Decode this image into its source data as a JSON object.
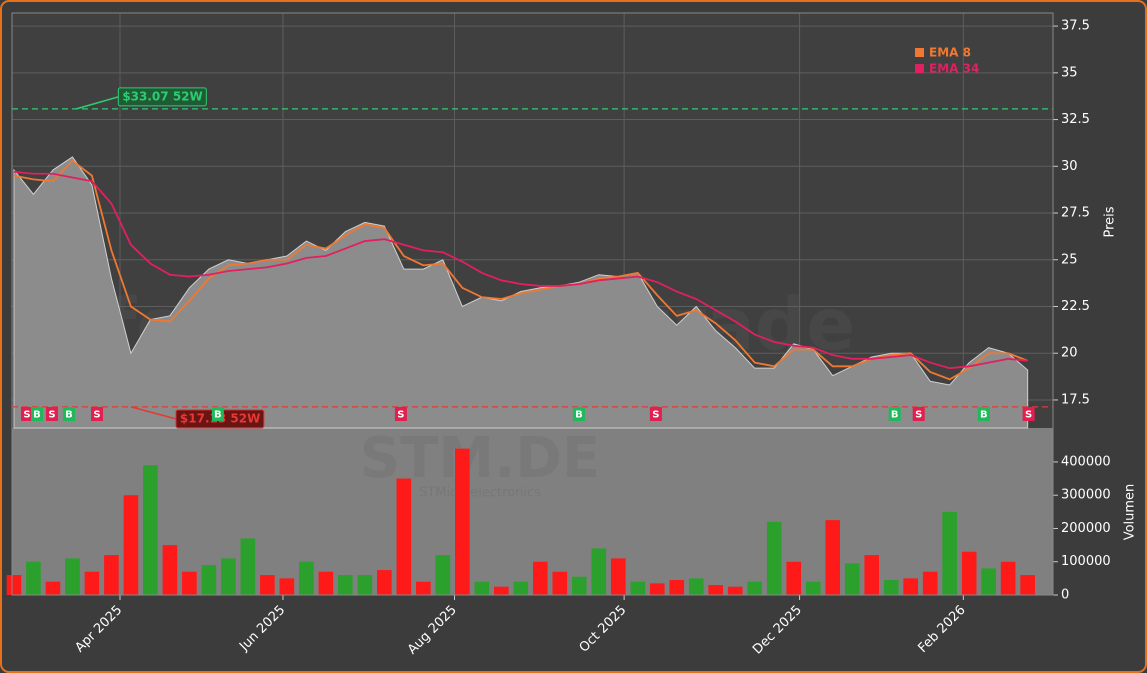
{
  "watermark": "forexsignale.trade",
  "chart_data": [
    {
      "type": "line",
      "y_label": "Preis",
      "watermark_symbol": "STM.DE",
      "watermark_name": "STMicroelectronics",
      "xlim": [
        -0.1,
        53.3
      ],
      "ylim": [
        16,
        38.2
      ],
      "yticks": [
        17.5,
        20.0,
        22.5,
        25.0,
        27.5,
        30.0,
        32.5,
        35.0,
        37.5
      ],
      "grid": true,
      "legend": "upper right",
      "values": [
        29.8,
        28.5,
        29.8,
        30.5,
        29,
        24,
        20,
        21.8,
        22,
        23.5,
        24.5,
        25,
        24.8,
        25,
        25.2,
        26,
        25.5,
        26.5,
        27,
        26.8,
        24.5,
        24.5,
        25,
        22.5,
        23,
        22.8,
        23.3,
        23.5,
        23.6,
        23.8,
        24.2,
        24.1,
        24.3,
        22.5,
        21.5,
        22.5,
        21.2,
        20.3,
        19.2,
        19.2,
        20.5,
        20.2,
        18.8,
        19.3,
        19.8,
        20,
        20,
        18.5,
        18.3,
        19.5,
        20.3,
        20,
        19.1
      ],
      "color": "#8c8c8c",
      "series": [
        {
          "name": "EMA 8",
          "color": "#f07830",
          "values": [
            29.5,
            29.3,
            29.2,
            30.3,
            29.5,
            25.5,
            22.5,
            21.8,
            21.7,
            22.8,
            24,
            24.7,
            24.8,
            25,
            25,
            25.8,
            25.6,
            26.3,
            26.9,
            26.7,
            25.2,
            24.7,
            24.8,
            23.5,
            23,
            22.9,
            23.2,
            23.4,
            23.6,
            23.7,
            24,
            24.1,
            24.3,
            23.1,
            22,
            22.3,
            21.6,
            20.7,
            19.5,
            19.3,
            20.2,
            20.2,
            19.3,
            19.3,
            19.7,
            19.9,
            20,
            19,
            18.6,
            19.2,
            20,
            20,
            19.6
          ]
        },
        {
          "name": "EMA 34",
          "color": "#e0205f",
          "values": [
            29.7,
            29.6,
            29.6,
            29.4,
            29.2,
            28,
            25.8,
            24.8,
            24.2,
            24.1,
            24.2,
            24.4,
            24.5,
            24.6,
            24.8,
            25.1,
            25.2,
            25.6,
            26,
            26.1,
            25.8,
            25.5,
            25.4,
            24.9,
            24.3,
            23.9,
            23.7,
            23.6,
            23.6,
            23.7,
            23.9,
            24,
            24.1,
            23.8,
            23.3,
            22.9,
            22.3,
            21.7,
            21,
            20.6,
            20.4,
            20.3,
            19.9,
            19.7,
            19.7,
            19.8,
            19.9,
            19.5,
            19.2,
            19.3,
            19.5,
            19.7,
            19.6
          ]
        }
      ],
      "hlines": [
        {
          "value": 33.07,
          "x": 3.2,
          "label": "$33.07 52W",
          "color": "#2ecc71"
        },
        {
          "value": 17.13,
          "x": 6.0,
          "label": "$17.13 52W",
          "color": "#e53935"
        }
      ],
      "signals": [
        {
          "x": 0.67,
          "label": "S",
          "color": "#e0204f"
        },
        {
          "x": 1.18,
          "label": "B",
          "color": "#1fb85a"
        },
        {
          "x": 1.95,
          "label": "S",
          "color": "#e0204f"
        },
        {
          "x": 2.82,
          "label": "B",
          "color": "#1fb85a"
        },
        {
          "x": 4.26,
          "label": "S",
          "color": "#e0204f"
        },
        {
          "x": 10.46,
          "label": "B",
          "color": "#1fb85a"
        },
        {
          "x": 19.85,
          "label": "S",
          "color": "#e0204f"
        },
        {
          "x": 28.98,
          "label": "B",
          "color": "#1fb85a"
        },
        {
          "x": 32.93,
          "label": "S",
          "color": "#e0204f"
        },
        {
          "x": 45.18,
          "label": "B",
          "color": "#1fb85a"
        },
        {
          "x": 46.41,
          "label": "S",
          "color": "#e0204f"
        },
        {
          "x": 49.75,
          "label": "B",
          "color": "#1fb85a"
        },
        {
          "x": 52.05,
          "label": "S",
          "color": "#e0204f"
        }
      ]
    },
    {
      "type": "bar",
      "y_label": "Volumen",
      "xlim": [
        -0.1,
        53.3
      ],
      "ylim": [
        0,
        502000
      ],
      "yticks": [
        0,
        100000,
        200000,
        300000,
        400000
      ],
      "xticks": [
        {
          "value": 5.44,
          "label": "Apr 2025"
        },
        {
          "value": 13.8,
          "label": "Jun 2025"
        },
        {
          "value": 22.6,
          "label": "Aug 2025"
        },
        {
          "value": 31.3,
          "label": "Oct 2025"
        },
        {
          "value": 40.3,
          "label": "Dec 2025"
        },
        {
          "value": 48.7,
          "label": "Feb 2026"
        }
      ],
      "values": [
        60000,
        100000,
        40000,
        110000,
        70000,
        120000,
        300000,
        390000,
        150000,
        70000,
        90000,
        110000,
        170000,
        60000,
        50000,
        100000,
        70000,
        60000,
        60000,
        75000,
        350000,
        40000,
        120000,
        440000,
        40000,
        25000,
        40000,
        100000,
        70000,
        55000,
        140000,
        110000,
        40000,
        35000,
        45000,
        50000,
        30000,
        25000,
        40000,
        220000,
        100000,
        40000,
        225000,
        95000,
        120000,
        45000,
        50000,
        70000,
        250000,
        130000,
        80000,
        100000,
        60000
      ],
      "colors": [
        "#ff1a1a",
        "#2ca02c",
        "#ff1a1a",
        "#2ca02c",
        "#ff1a1a",
        "#ff1a1a",
        "#ff1a1a",
        "#2ca02c",
        "#ff1a1a",
        "#ff1a1a",
        "#2ca02c",
        "#2ca02c",
        "#2ca02c",
        "#ff1a1a",
        "#ff1a1a",
        "#2ca02c",
        "#ff1a1a",
        "#2ca02c",
        "#2ca02c",
        "#ff1a1a",
        "#ff1a1a",
        "#ff1a1a",
        "#2ca02c",
        "#ff1a1a",
        "#2ca02c",
        "#ff1a1a",
        "#2ca02c",
        "#ff1a1a",
        "#ff1a1a",
        "#2ca02c",
        "#2ca02c",
        "#ff1a1a",
        "#2ca02c",
        "#ff1a1a",
        "#ff1a1a",
        "#2ca02c",
        "#ff1a1a",
        "#ff1a1a",
        "#2ca02c",
        "#2ca02c",
        "#ff1a1a",
        "#2ca02c",
        "#ff1a1a",
        "#2ca02c",
        "#ff1a1a",
        "#2ca02c",
        "#ff1a1a",
        "#ff1a1a",
        "#2ca02c",
        "#ff1a1a",
        "#2ca02c",
        "#ff1a1a",
        "#ff1a1a"
      ]
    }
  ]
}
